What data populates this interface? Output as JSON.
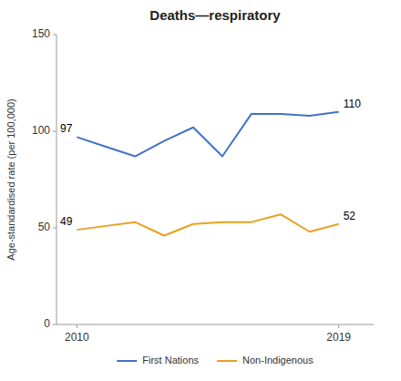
{
  "chart_data": {
    "type": "line",
    "title": "Deaths—respiratory",
    "y_label": "Age-standardised rate (per 100,000)",
    "x": [
      2010,
      2011,
      2012,
      2013,
      2014,
      2015,
      2016,
      2017,
      2018,
      2019
    ],
    "xlim": [
      2009.3,
      2020.2
    ],
    "xticks": [
      2010,
      2019
    ],
    "ylim": [
      0,
      150
    ],
    "yticks": [
      0,
      50,
      100,
      150
    ],
    "series": [
      {
        "name": "First Nations",
        "color": "#4472C4",
        "values": [
          97,
          92,
          87,
          95,
          102,
          87,
          109,
          109,
          108,
          110
        ]
      },
      {
        "name": "Non-Indigenous",
        "color": "#E8A020",
        "values": [
          49,
          51,
          53,
          46,
          52,
          53,
          53,
          57,
          48,
          52
        ]
      }
    ],
    "annotations": [
      {
        "text": "97",
        "x": 2010,
        "y": 97
      },
      {
        "text": "110",
        "x": 2019,
        "y": 110
      },
      {
        "text": "49",
        "x": 2010,
        "y": 49
      },
      {
        "text": "52",
        "x": 2019,
        "y": 52
      }
    ],
    "legend": "bottom",
    "grid": false
  }
}
